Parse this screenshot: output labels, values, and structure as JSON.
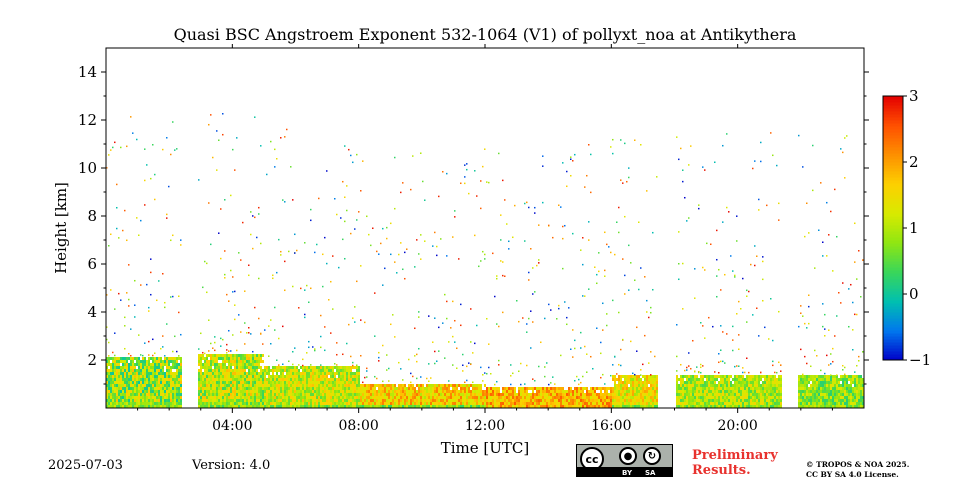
{
  "chart_data": {
    "type": "heatmap",
    "title": "Quasi BSC Angstroem Exponent 532-1064 (V1) of pollyxt_noa at Antikythera",
    "xlabel": "Time [UTC]",
    "ylabel": "Height [km]",
    "xlim_hours": [
      0,
      24
    ],
    "ylim_km": [
      0,
      15
    ],
    "x_ticks": [
      {
        "value": 4,
        "label": "04:00"
      },
      {
        "value": 8,
        "label": "08:00"
      },
      {
        "value": 12,
        "label": "12:00"
      },
      {
        "value": 16,
        "label": "16:00"
      },
      {
        "value": 20,
        "label": "20:00"
      }
    ],
    "y_ticks": [
      {
        "value": 2,
        "label": "2"
      },
      {
        "value": 4,
        "label": "4"
      },
      {
        "value": 6,
        "label": "6"
      },
      {
        "value": 8,
        "label": "8"
      },
      {
        "value": 10,
        "label": "10"
      },
      {
        "value": 12,
        "label": "12"
      },
      {
        "value": 14,
        "label": "14"
      }
    ],
    "colorbar": {
      "range": [
        -1,
        3
      ],
      "ticks": [
        {
          "value": -1,
          "label": "−1"
        },
        {
          "value": 0,
          "label": "0"
        },
        {
          "value": 1,
          "label": "1"
        },
        {
          "value": 2,
          "label": "2"
        },
        {
          "value": 3,
          "label": "3"
        }
      ],
      "colormap": [
        "#0000c8",
        "#0077ee",
        "#00bfb0",
        "#39d65a",
        "#8fe612",
        "#d8ea00",
        "#fdd000",
        "#fd9000",
        "#ff5000",
        "#e40000"
      ]
    },
    "data_gaps_hours": [
      [
        2.35,
        2.85
      ],
      [
        17.45,
        18.0
      ],
      [
        21.4,
        21.85
      ]
    ],
    "layers": [
      {
        "from_hour": 0.0,
        "to_hour": 2.35,
        "top_km": 2.2,
        "value_range": [
          0.0,
          1.8
        ]
      },
      {
        "from_hour": 2.85,
        "to_hour": 5.0,
        "top_km": 2.3,
        "value_range": [
          0.3,
          1.8
        ]
      },
      {
        "from_hour": 5.0,
        "to_hour": 8.0,
        "top_km": 1.8,
        "value_range": [
          0.5,
          1.8
        ]
      },
      {
        "from_hour": 8.0,
        "to_hour": 12.0,
        "top_km": 1.1,
        "value_range": [
          1.0,
          2.3
        ]
      },
      {
        "from_hour": 12.0,
        "to_hour": 16.0,
        "top_km": 1.0,
        "value_range": [
          1.2,
          2.5
        ]
      },
      {
        "from_hour": 16.0,
        "to_hour": 17.45,
        "top_km": 1.4,
        "value_range": [
          0.8,
          2.0
        ]
      },
      {
        "from_hour": 18.0,
        "to_hour": 21.4,
        "top_km": 1.5,
        "value_range": [
          0.4,
          1.6
        ]
      },
      {
        "from_hour": 21.85,
        "to_hour": 24.0,
        "top_km": 1.4,
        "value_range": [
          0.2,
          1.4
        ]
      }
    ]
  },
  "footer": {
    "date": "2025-07-03",
    "version": "Version: 4.0",
    "preliminary_line1": "Preliminary",
    "preliminary_line2": "Results.",
    "copyright_line1": "© TROPOS & NOA 2025.",
    "copyright_line2": "CC BY SA 4.0 License.",
    "badge": {
      "cc": "cc",
      "by": "BY",
      "sa": "SA"
    }
  }
}
